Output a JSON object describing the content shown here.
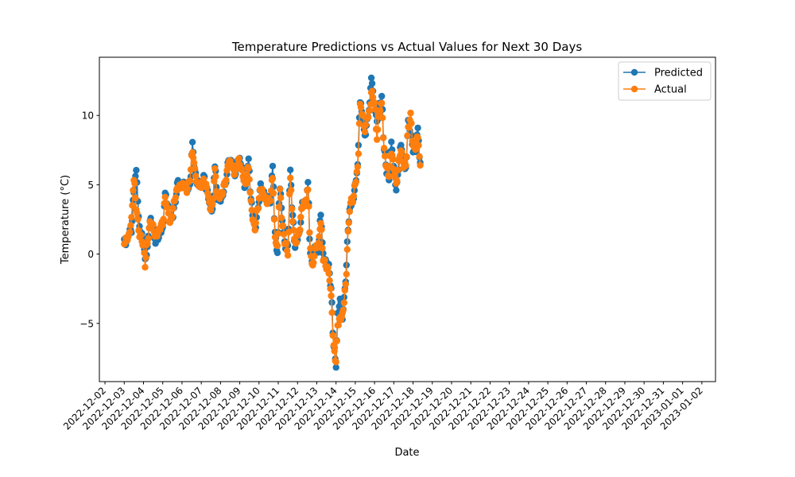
{
  "chart_data": {
    "type": "line",
    "title": "Temperature Predictions vs Actual Values for Next 30 Days",
    "xlabel": "Date",
    "ylabel": "Temperature (°C)",
    "xlim": [
      "2022-12-01T17:00",
      "2023-01-02T17:00"
    ],
    "ylim": [
      -9.2,
      14.2
    ],
    "yticks": [
      -5,
      0,
      5,
      10
    ],
    "yticklabels": [
      "−5",
      "0",
      "5",
      "10"
    ],
    "xticks": [
      "2022-12-02",
      "2022-12-03",
      "2022-12-04",
      "2022-12-05",
      "2022-12-06",
      "2022-12-07",
      "2022-12-08",
      "2022-12-09",
      "2022-12-10",
      "2022-12-11",
      "2022-12-12",
      "2022-12-13",
      "2022-12-14",
      "2022-12-15",
      "2022-12-16",
      "2022-12-17",
      "2022-12-18",
      "2022-12-19",
      "2022-12-20",
      "2022-12-21",
      "2022-12-22",
      "2022-12-23",
      "2022-12-24",
      "2022-12-25",
      "2022-12-26",
      "2022-12-27",
      "2022-12-28",
      "2022-12-29",
      "2022-12-30",
      "2022-12-31",
      "2023-01-01",
      "2023-01-02"
    ],
    "xtick_rotation": 45,
    "grid": false,
    "legend_position": "top-right",
    "series": [
      {
        "name": "Predicted",
        "color": "#1f77b4",
        "marker": "circle",
        "keypoints": [
          [
            "2022-12-03T00:00",
            1.0
          ],
          [
            "2022-12-03T03:00",
            0.8
          ],
          [
            "2022-12-03T06:00",
            1.5
          ],
          [
            "2022-12-03T09:00",
            1.8
          ],
          [
            "2022-12-03T12:00",
            4.5
          ],
          [
            "2022-12-03T15:00",
            5.8
          ],
          [
            "2022-12-03T19:00",
            2.0
          ],
          [
            "2022-12-04T00:00",
            1.0
          ],
          [
            "2022-12-04T02:00",
            -0.6
          ],
          [
            "2022-12-04T04:00",
            0.1
          ],
          [
            "2022-12-04T08:00",
            2.5
          ],
          [
            "2022-12-04T12:00",
            1.8
          ],
          [
            "2022-12-04T15:00",
            1.0
          ],
          [
            "2022-12-04T18:00",
            1.2
          ],
          [
            "2022-12-05T00:00",
            1.8
          ],
          [
            "2022-12-05T03:00",
            4.4
          ],
          [
            "2022-12-05T06:00",
            3.5
          ],
          [
            "2022-12-05T09:00",
            2.5
          ],
          [
            "2022-12-05T12:00",
            2.7
          ],
          [
            "2022-12-05T15:00",
            3.5
          ],
          [
            "2022-12-05T19:00",
            5.2
          ],
          [
            "2022-12-06T00:00",
            5.0
          ],
          [
            "2022-12-06T06:00",
            4.8
          ],
          [
            "2022-12-06T10:00",
            5.0
          ],
          [
            "2022-12-06T13:00",
            7.8
          ],
          [
            "2022-12-06T16:00",
            6.0
          ],
          [
            "2022-12-06T19:00",
            5.2
          ],
          [
            "2022-12-07T00:00",
            4.8
          ],
          [
            "2022-12-07T03:00",
            5.7
          ],
          [
            "2022-12-07T07:00",
            4.6
          ],
          [
            "2022-12-07T11:00",
            3.5
          ],
          [
            "2022-12-07T14:00",
            3.3
          ],
          [
            "2022-12-07T17:00",
            6.4
          ],
          [
            "2022-12-07T20:00",
            4.0
          ],
          [
            "2022-12-08T02:00",
            4.1
          ],
          [
            "2022-12-08T06:00",
            5.0
          ],
          [
            "2022-12-08T10:00",
            6.8
          ],
          [
            "2022-12-08T14:00",
            6.5
          ],
          [
            "2022-12-08T18:00",
            5.8
          ],
          [
            "2022-12-08T22:00",
            6.9
          ],
          [
            "2022-12-09T03:00",
            6.2
          ],
          [
            "2022-12-09T07:00",
            4.8
          ],
          [
            "2022-12-09T11:00",
            6.6
          ],
          [
            "2022-12-09T14:00",
            4.0
          ],
          [
            "2022-12-09T17:00",
            2.6
          ],
          [
            "2022-12-09T19:00",
            1.6
          ],
          [
            "2022-12-09T22:00",
            3.0
          ],
          [
            "2022-12-10T02:00",
            5.0
          ],
          [
            "2022-12-10T06:00",
            4.3
          ],
          [
            "2022-12-10T10:00",
            4.0
          ],
          [
            "2022-12-10T14:00",
            3.7
          ],
          [
            "2022-12-10T17:00",
            6.1
          ],
          [
            "2022-12-10T20:00",
            1.5
          ],
          [
            "2022-12-10T23:00",
            0.2
          ],
          [
            "2022-12-11T02:00",
            4.8
          ],
          [
            "2022-12-11T05:00",
            2.5
          ],
          [
            "2022-12-11T09:00",
            0.6
          ],
          [
            "2022-12-11T12:00",
            0.5
          ],
          [
            "2022-12-11T15:00",
            5.9
          ],
          [
            "2022-12-11T18:00",
            2.8
          ],
          [
            "2022-12-11T21:00",
            0.5
          ],
          [
            "2022-12-12T02:00",
            1.5
          ],
          [
            "2022-12-12T06:00",
            3.6
          ],
          [
            "2022-12-12T10:00",
            3.6
          ],
          [
            "2022-12-12T13:00",
            5.1
          ],
          [
            "2022-12-12T16:00",
            0.0
          ],
          [
            "2022-12-12T19:00",
            -0.7
          ],
          [
            "2022-12-12T22:00",
            0.8
          ],
          [
            "2022-12-13T02:00",
            0.3
          ],
          [
            "2022-12-13T05:00",
            2.8
          ],
          [
            "2022-12-13T08:00",
            0.0
          ],
          [
            "2022-12-13T12:00",
            -0.6
          ],
          [
            "2022-12-13T15:00",
            -1.0
          ],
          [
            "2022-12-13T18:00",
            -2.5
          ],
          [
            "2022-12-13T21:00",
            -6.5
          ],
          [
            "2022-12-14T00:00",
            -8.1
          ],
          [
            "2022-12-14T02:00",
            -4.5
          ],
          [
            "2022-12-14T05:00",
            -3.2
          ],
          [
            "2022-12-14T08:00",
            -4.6
          ],
          [
            "2022-12-14T12:00",
            -2.0
          ],
          [
            "2022-12-14T15:00",
            2.0
          ],
          [
            "2022-12-14T18:00",
            3.5
          ],
          [
            "2022-12-14T21:00",
            3.8
          ],
          [
            "2022-12-15T00:00",
            5.0
          ],
          [
            "2022-12-15T03:00",
            6.5
          ],
          [
            "2022-12-15T06:00",
            11.0
          ],
          [
            "2022-12-15T09:00",
            9.8
          ],
          [
            "2022-12-15T12:00",
            8.6
          ],
          [
            "2022-12-15T15:00",
            9.5
          ],
          [
            "2022-12-15T18:00",
            10.8
          ],
          [
            "2022-12-15T20:00",
            12.9
          ],
          [
            "2022-12-16T00:00",
            10.5
          ],
          [
            "2022-12-16T03:00",
            9.5
          ],
          [
            "2022-12-16T06:00",
            10.8
          ],
          [
            "2022-12-16T09:00",
            11.3
          ],
          [
            "2022-12-16T12:00",
            7.5
          ],
          [
            "2022-12-16T15:00",
            6.0
          ],
          [
            "2022-12-16T18:00",
            5.5
          ],
          [
            "2022-12-16T21:00",
            7.9
          ],
          [
            "2022-12-17T01:00",
            5.8
          ],
          [
            "2022-12-17T03:00",
            4.7
          ],
          [
            "2022-12-17T06:00",
            6.2
          ],
          [
            "2022-12-17T09:00",
            7.9
          ],
          [
            "2022-12-17T12:00",
            6.7
          ],
          [
            "2022-12-17T15:00",
            6.1
          ],
          [
            "2022-12-17T18:00",
            9.5
          ],
          [
            "2022-12-17T21:00",
            8.8
          ],
          [
            "2022-12-18T00:00",
            7.6
          ],
          [
            "2022-12-18T03:00",
            7.3
          ],
          [
            "2022-12-18T06:00",
            8.9
          ],
          [
            "2022-12-18T09:00",
            6.6
          ]
        ]
      },
      {
        "name": "Actual",
        "color": "#ff7f0e",
        "marker": "circle",
        "keypoints": [
          [
            "2022-12-03T00:00",
            0.9
          ],
          [
            "2022-12-03T03:00",
            1.0
          ],
          [
            "2022-12-03T06:00",
            1.3
          ],
          [
            "2022-12-03T09:00",
            2.7
          ],
          [
            "2022-12-03T12:00",
            5.4
          ],
          [
            "2022-12-03T15:00",
            3.3
          ],
          [
            "2022-12-03T19:00",
            1.5
          ],
          [
            "2022-12-04T00:00",
            0.6
          ],
          [
            "2022-12-04T02:00",
            -0.8
          ],
          [
            "2022-12-04T04:00",
            0.6
          ],
          [
            "2022-12-04T08:00",
            2.1
          ],
          [
            "2022-12-04T12:00",
            2.0
          ],
          [
            "2022-12-04T15:00",
            1.3
          ],
          [
            "2022-12-04T18:00",
            1.5
          ],
          [
            "2022-12-05T00:00",
            2.3
          ],
          [
            "2022-12-05T03:00",
            4.0
          ],
          [
            "2022-12-05T06:00",
            3.1
          ],
          [
            "2022-12-05T09:00",
            2.3
          ],
          [
            "2022-12-05T12:00",
            2.9
          ],
          [
            "2022-12-05T15:00",
            3.9
          ],
          [
            "2022-12-05T19:00",
            4.9
          ],
          [
            "2022-12-06T00:00",
            4.9
          ],
          [
            "2022-12-06T06:00",
            4.7
          ],
          [
            "2022-12-06T10:00",
            5.4
          ],
          [
            "2022-12-06T13:00",
            7.4
          ],
          [
            "2022-12-06T16:00",
            6.2
          ],
          [
            "2022-12-06T19:00",
            5.0
          ],
          [
            "2022-12-07T00:00",
            4.9
          ],
          [
            "2022-12-07T03:00",
            5.4
          ],
          [
            "2022-12-07T07:00",
            4.7
          ],
          [
            "2022-12-07T11:00",
            3.4
          ],
          [
            "2022-12-07T14:00",
            3.5
          ],
          [
            "2022-12-07T17:00",
            5.9
          ],
          [
            "2022-12-07T20:00",
            4.2
          ],
          [
            "2022-12-08T02:00",
            4.3
          ],
          [
            "2022-12-08T06:00",
            5.2
          ],
          [
            "2022-12-08T10:00",
            6.7
          ],
          [
            "2022-12-08T14:00",
            6.3
          ],
          [
            "2022-12-08T18:00",
            5.9
          ],
          [
            "2022-12-08T22:00",
            6.7
          ],
          [
            "2022-12-09T03:00",
            6.0
          ],
          [
            "2022-12-09T07:00",
            5.0
          ],
          [
            "2022-12-09T11:00",
            6.2
          ],
          [
            "2022-12-09T14:00",
            3.8
          ],
          [
            "2022-12-09T17:00",
            2.2
          ],
          [
            "2022-12-09T19:00",
            1.8
          ],
          [
            "2022-12-09T22:00",
            3.3
          ],
          [
            "2022-12-10T02:00",
            4.8
          ],
          [
            "2022-12-10T06:00",
            4.1
          ],
          [
            "2022-12-10T10:00",
            3.9
          ],
          [
            "2022-12-10T14:00",
            3.9
          ],
          [
            "2022-12-10T17:00",
            5.6
          ],
          [
            "2022-12-10T20:00",
            1.3
          ],
          [
            "2022-12-10T23:00",
            0.4
          ],
          [
            "2022-12-11T02:00",
            4.5
          ],
          [
            "2022-12-11T05:00",
            2.2
          ],
          [
            "2022-12-11T09:00",
            0.7
          ],
          [
            "2022-12-11T12:00",
            0.0
          ],
          [
            "2022-12-11T15:00",
            5.7
          ],
          [
            "2022-12-11T18:00",
            2.3
          ],
          [
            "2022-12-11T21:00",
            0.6
          ],
          [
            "2022-12-12T02:00",
            1.7
          ],
          [
            "2022-12-12T06:00",
            3.4
          ],
          [
            "2022-12-12T10:00",
            3.7
          ],
          [
            "2022-12-12T13:00",
            4.8
          ],
          [
            "2022-12-12T16:00",
            0.2
          ],
          [
            "2022-12-12T19:00",
            -1.0
          ],
          [
            "2022-12-12T22:00",
            0.5
          ],
          [
            "2022-12-13T02:00",
            0.6
          ],
          [
            "2022-12-13T05:00",
            2.3
          ],
          [
            "2022-12-13T08:00",
            -0.2
          ],
          [
            "2022-12-13T12:00",
            -1.0
          ],
          [
            "2022-12-13T15:00",
            -1.3
          ],
          [
            "2022-12-13T18:00",
            -3.0
          ],
          [
            "2022-12-13T21:00",
            -6.8
          ],
          [
            "2022-12-14T00:00",
            -7.9
          ],
          [
            "2022-12-14T02:00",
            -5.0
          ],
          [
            "2022-12-14T05:00",
            -4.6
          ],
          [
            "2022-12-14T08:00",
            -4.5
          ],
          [
            "2022-12-14T12:00",
            -2.3
          ],
          [
            "2022-12-14T15:00",
            1.6
          ],
          [
            "2022-12-14T18:00",
            3.7
          ],
          [
            "2022-12-14T21:00",
            3.9
          ],
          [
            "2022-12-15T00:00",
            5.2
          ],
          [
            "2022-12-15T03:00",
            6.1
          ],
          [
            "2022-12-15T06:00",
            10.6
          ],
          [
            "2022-12-15T09:00",
            10.2
          ],
          [
            "2022-12-15T12:00",
            9.0
          ],
          [
            "2022-12-15T15:00",
            9.8
          ],
          [
            "2022-12-15T18:00",
            10.3
          ],
          [
            "2022-12-15T20:00",
            11.8
          ],
          [
            "2022-12-16T00:00",
            10.8
          ],
          [
            "2022-12-16T03:00",
            8.4
          ],
          [
            "2022-12-16T06:00",
            10.4
          ],
          [
            "2022-12-16T09:00",
            10.8
          ],
          [
            "2022-12-16T12:00",
            7.4
          ],
          [
            "2022-12-16T15:00",
            6.3
          ],
          [
            "2022-12-16T18:00",
            5.7
          ],
          [
            "2022-12-16T21:00",
            7.3
          ],
          [
            "2022-12-17T01:00",
            6.0
          ],
          [
            "2022-12-17T03:00",
            5.0
          ],
          [
            "2022-12-17T06:00",
            6.5
          ],
          [
            "2022-12-17T09:00",
            7.5
          ],
          [
            "2022-12-17T12:00",
            6.5
          ],
          [
            "2022-12-17T15:00",
            6.4
          ],
          [
            "2022-12-17T18:00",
            9.0
          ],
          [
            "2022-12-17T21:00",
            10.1
          ],
          [
            "2022-12-18T00:00",
            7.8
          ],
          [
            "2022-12-18T03:00",
            7.6
          ],
          [
            "2022-12-18T06:00",
            8.6
          ],
          [
            "2022-12-18T09:00",
            6.4
          ]
        ]
      }
    ]
  }
}
